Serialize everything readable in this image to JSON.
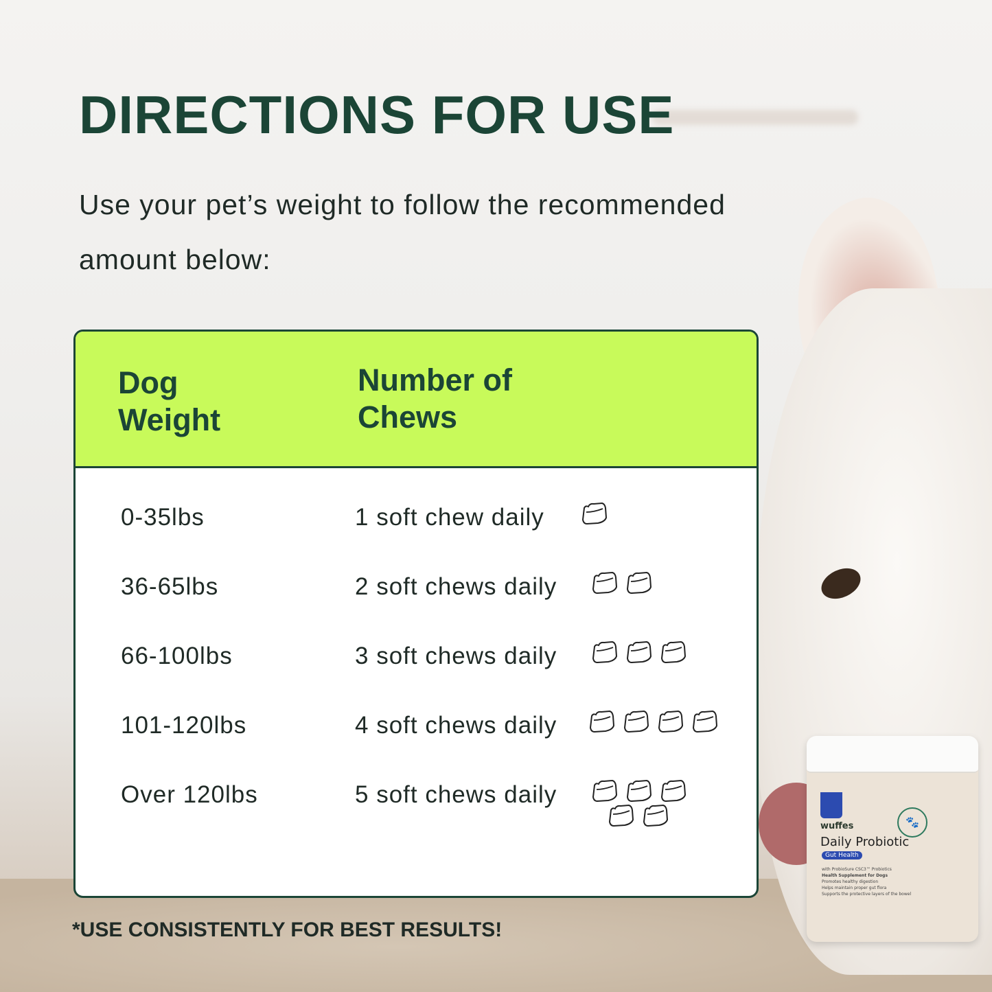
{
  "title": "DIRECTIONS FOR USE",
  "subtitle": "Use your pet’s weight to follow the recommended amount below:",
  "table": {
    "headers": [
      "Dog Weight",
      "Number of Chews"
    ],
    "rows": [
      {
        "weight": "0-35lbs",
        "chews": "1 soft chew daily",
        "count": 1
      },
      {
        "weight": "36-65lbs",
        "chews": "2 soft chews daily",
        "count": 2
      },
      {
        "weight": "66-100lbs",
        "chews": "3 soft chews daily",
        "count": 3
      },
      {
        "weight": "101-120lbs",
        "chews": "4 soft chews daily",
        "count": 4
      },
      {
        "weight": "Over 120lbs",
        "chews": "5 soft chews daily",
        "count": 5
      }
    ],
    "icon": "soft-chew-icon"
  },
  "footer": "*USE CONSISTENTLY FOR BEST RESULTS!",
  "product": {
    "brand": "wuffes",
    "name": "Daily Probiotic",
    "tag": "Gut Health",
    "line1": "with ProbioSure CSC3™ Probiotics",
    "line2": "Health Supplement for Dogs",
    "benefits": [
      "Promotes healthy digestion",
      "Helps maintain proper gut flora",
      "Supports the protective layers of the bowel"
    ]
  },
  "colors": {
    "heading": "#1b4536",
    "header_bg": "#c8fa5a",
    "text": "#1f2a26"
  }
}
